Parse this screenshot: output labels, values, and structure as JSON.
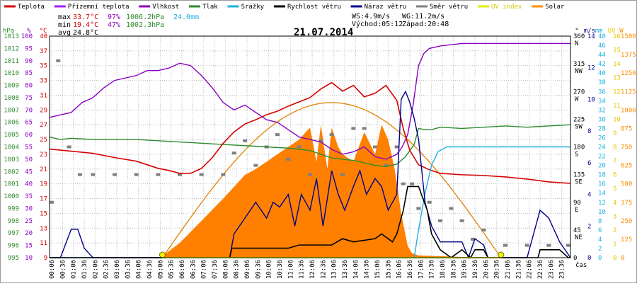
{
  "chart_data": {
    "type": "line",
    "title": "21.07.2014",
    "legend": [
      {
        "name": "Teplota",
        "color": "#d40000"
      },
      {
        "name": "Přízemní teplota",
        "color": "#a020f0"
      },
      {
        "name": "Vlhkost",
        "color": "#8a00c0"
      },
      {
        "name": "Tlak",
        "color": "#2e8b2e"
      },
      {
        "name": "Srážky",
        "color": "#1fb2e0"
      },
      {
        "name": "Rychlost větru",
        "color": "#000000"
      },
      {
        "name": "Náraz větru",
        "color": "#00008b"
      },
      {
        "name": "Směr větru",
        "color": "#7f7f7f"
      },
      {
        "name": "UV index",
        "color": "#e8e800"
      },
      {
        "name": "Solar",
        "color": "#ff8c00"
      }
    ],
    "stats": {
      "max_label": "max",
      "max_temp": "33.7°C",
      "max_hum": "97%",
      "max_press": "1006.2hPa",
      "max_rain": "24.0mm",
      "min_label": "min",
      "min_temp": "19.4°C",
      "min_hum": "47%",
      "min_press": "1002.3hPa",
      "avg_label": "avg",
      "avg_temp": "24.8°C"
    },
    "wind_info": {
      "ws": "WS:4.9m/s",
      "wg": "WG:11.2m/s",
      "sunrise": "Východ:05:12",
      "sunset": "Západ:20:48"
    },
    "x_axis_label": "čas",
    "x_ticks": [
      "00:06",
      "00:36",
      "01:06",
      "01:36",
      "02:06",
      "02:36",
      "03:06",
      "03:36",
      "04:06",
      "04:36",
      "05:06",
      "05:36",
      "06:06",
      "06:36",
      "07:06",
      "07:36",
      "08:06",
      "08:36",
      "09:06",
      "09:36",
      "10:06",
      "10:36",
      "11:06",
      "11:36",
      "12:06",
      "12:36",
      "13:06",
      "13:36",
      "14:06",
      "14:36",
      "15:06",
      "15:36",
      "16:06",
      "16:36",
      "17:06",
      "17:36",
      "18:06",
      "18:36",
      "19:06",
      "19:36",
      "20:06",
      "20:36",
      "21:06",
      "21:36",
      "22:06",
      "22:36",
      "23:06",
      "23:36"
    ],
    "axes": {
      "hpa": {
        "unit": "hPa",
        "ticks": [
          "1013",
          "1012",
          "1011",
          "1010",
          "1009",
          "1008",
          "1007",
          "1006",
          "1005",
          "1004",
          "1003",
          "1002",
          "1001",
          "1000",
          "999",
          "998",
          "997",
          "996",
          "995"
        ],
        "range": [
          995,
          1013
        ]
      },
      "pct": {
        "unit": "%",
        "ticks": [
          "100",
          "95",
          "90",
          "85",
          "80",
          "75",
          "70",
          "65",
          "60",
          "55",
          "50",
          "45",
          "40",
          "35",
          "30",
          "25",
          "20",
          "15",
          "10"
        ],
        "range": [
          10,
          100
        ]
      },
      "temp": {
        "unit": "°C",
        "ticks": [
          "40",
          "37",
          "35",
          "33",
          "31",
          "29",
          "27",
          "25",
          "23",
          "21",
          "19",
          "17",
          "15",
          "13",
          "11",
          "9"
        ],
        "range": [
          9,
          40
        ]
      },
      "wind_dir": {
        "unit": "°",
        "ticks": [
          "360 N",
          "315 NW",
          "270 W",
          "225 SW",
          "180 S",
          "135 SE",
          "90 E",
          "45 NE",
          "0"
        ],
        "range": [
          0,
          360
        ]
      },
      "wind_speed": {
        "unit": "m/s",
        "ticks": [
          "14",
          "12",
          "10",
          "8",
          "6",
          "4",
          "2",
          "0"
        ],
        "range": [
          0,
          14
        ]
      },
      "rain": {
        "unit": "mm",
        "ticks": [
          "48",
          "46",
          "44",
          "42",
          "40",
          "38",
          "36",
          "34",
          "32",
          "30",
          "28",
          "26",
          "24",
          "22",
          "20",
          "18",
          "16",
          "14",
          "12",
          "10",
          "8",
          "6",
          "4",
          "2",
          "0"
        ],
        "range": [
          0,
          48
        ]
      },
      "uv": {
        "unit": "UV",
        "ticks": [
          "16",
          "15",
          "14",
          "13",
          "12",
          "11",
          "10",
          "9",
          "8",
          "7",
          "6",
          "5",
          "4",
          "3",
          "2",
          "1",
          "0"
        ],
        "range": [
          0,
          16
        ]
      },
      "solar": {
        "unit": "W",
        "ticks": [
          "1500",
          "1375",
          "1250",
          "1125",
          "1000",
          "875",
          "750",
          "625",
          "500",
          "375",
          "250",
          "125",
          "0"
        ],
        "range": [
          0,
          1500
        ]
      }
    },
    "series": {
      "temperature": {
        "hours": [
          0,
          1,
          2,
          3,
          4,
          5,
          5.5,
          6,
          6.5,
          7,
          7.5,
          8,
          8.5,
          9,
          9.5,
          10,
          10.5,
          11,
          11.5,
          12,
          12.5,
          13,
          13.5,
          14,
          14.5,
          15,
          15.5,
          16,
          16.3,
          16.6,
          17,
          17.5,
          18,
          19,
          20,
          21,
          22,
          23,
          24
        ],
        "values": [
          24.2,
          23.9,
          23.6,
          23,
          22.5,
          21.5,
          21.2,
          20.8,
          20.8,
          21.5,
          23,
          25,
          26.6,
          27.7,
          28.3,
          29,
          29.5,
          30.2,
          30.8,
          31.4,
          32.6,
          33.5,
          32.3,
          33.1,
          31.5,
          32,
          33.1,
          31,
          27,
          24,
          22,
          21.3,
          20.8,
          20.6,
          20.5,
          20.3,
          20,
          19.6,
          19.4
        ]
      },
      "humidity": {
        "hours": [
          0,
          0.5,
          1,
          1.5,
          2,
          2.5,
          3,
          3.5,
          4,
          4.5,
          5,
          5.5,
          6,
          6.5,
          7,
          7.5,
          8,
          8.5,
          9,
          9.5,
          10,
          10.5,
          11,
          11.5,
          12,
          12.5,
          13,
          13.5,
          14,
          14.5,
          15,
          15.5,
          16,
          16.25,
          16.5,
          16.75,
          17,
          17.25,
          17.5,
          18,
          19,
          20,
          21,
          22,
          23,
          24
        ],
        "values": [
          67,
          68,
          69,
          73,
          75,
          79,
          82,
          83,
          84,
          86,
          86,
          87,
          89,
          88,
          84,
          79,
          73,
          70,
          72,
          69,
          66,
          65,
          62,
          59,
          58,
          57,
          54,
          52,
          53,
          55,
          51,
          50,
          52,
          55,
          60,
          72,
          88,
          93,
          95,
          96,
          97,
          97,
          97,
          97,
          97,
          97
        ]
      },
      "pressure": {
        "hours": [
          0,
          0.5,
          1,
          2,
          3,
          4,
          5,
          6,
          7,
          8,
          9,
          10,
          11,
          12,
          12.5,
          13,
          14,
          15,
          15.5,
          16,
          16.4,
          16.8,
          17,
          17.3,
          17.6,
          18,
          19,
          20,
          21,
          22,
          23,
          24
        ],
        "values": [
          1004.8,
          1004.6,
          1004.7,
          1004.6,
          1004.6,
          1004.6,
          1004.5,
          1004.4,
          1004.3,
          1004.2,
          1004.1,
          1004.0,
          1003.9,
          1003.7,
          1003.4,
          1003.1,
          1002.9,
          1002.5,
          1002.4,
          1002.6,
          1003.2,
          1004.2,
          1005.5,
          1005.4,
          1005.4,
          1005.6,
          1005.5,
          1005.6,
          1005.7,
          1005.6,
          1005.7,
          1005.8
        ]
      },
      "rain": {
        "hours": [
          0,
          16.8,
          17.0,
          17.3,
          17.6,
          17.9,
          18.3,
          18.8,
          24
        ],
        "values": [
          0,
          0,
          6,
          14,
          20,
          23,
          24,
          24,
          24
        ]
      },
      "wind_speed": {
        "hours": [
          0,
          8.3,
          8.4,
          9,
          10,
          11,
          11.5,
          12,
          13,
          13.5,
          14,
          15,
          15.3,
          15.8,
          16,
          16.3,
          16.5,
          16.7,
          17,
          17.4,
          17.6,
          18,
          18.5,
          19,
          19.4,
          19.6,
          20,
          20.2,
          21,
          22,
          22.5,
          22.6,
          23,
          23.5,
          23.9,
          24
        ],
        "values": [
          0,
          0,
          0.6,
          0.6,
          0.6,
          0.6,
          0.8,
          0.8,
          0.8,
          1.2,
          1.0,
          1.2,
          1.5,
          1.0,
          1.5,
          3,
          4.5,
          4.5,
          4.5,
          3,
          1.5,
          0.5,
          0,
          0.5,
          0,
          0.5,
          0.5,
          0,
          0,
          0,
          0,
          0.5,
          0.5,
          0.5,
          0,
          0
        ]
      },
      "wind_gust": {
        "hours": [
          0,
          0.5,
          1,
          1.3,
          1.6,
          2,
          7,
          8.3,
          8.5,
          9,
          9.5,
          10,
          10.3,
          10.6,
          11,
          11.3,
          11.6,
          12,
          12.3,
          12.6,
          13,
          13.3,
          13.6,
          14,
          14.3,
          14.6,
          15,
          15.3,
          15.6,
          16,
          16.2,
          16.4,
          16.6,
          16.8,
          17,
          17.3,
          17.6,
          18,
          19,
          19.3,
          19.6,
          20,
          20.2,
          22,
          22.3,
          22.6,
          23,
          23.5,
          24
        ],
        "values": [
          0,
          0,
          1.8,
          1.8,
          0.6,
          0,
          0,
          0,
          1.5,
          2.5,
          3.5,
          2.5,
          3.5,
          3.2,
          4,
          2,
          4,
          3,
          5,
          2,
          5.5,
          4,
          3,
          4.5,
          5.5,
          4,
          5,
          4.5,
          3,
          4,
          10,
          10.5,
          9.8,
          8.8,
          7.5,
          3.5,
          2,
          1,
          1,
          0,
          1.2,
          0.8,
          0,
          0,
          1.5,
          3,
          2.5,
          1,
          0
        ]
      },
      "solar": {
        "hours": [
          5.1,
          6,
          7,
          8,
          8.5,
          9,
          9.5,
          10,
          10.5,
          11,
          11.5,
          11.8,
          12,
          12.3,
          12.5,
          12.8,
          13,
          13.3,
          13.5,
          14,
          14.5,
          15,
          15.3,
          15.6,
          15.9,
          16.2,
          16.5,
          16.7,
          17,
          18,
          19,
          20,
          20.8
        ],
        "values": [
          0,
          100,
          250,
          400,
          480,
          560,
          600,
          650,
          700,
          750,
          800,
          850,
          880,
          650,
          900,
          600,
          880,
          750,
          700,
          650,
          850,
          700,
          900,
          800,
          600,
          300,
          80,
          30,
          15,
          10,
          5,
          0,
          0
        ]
      },
      "solar_theoretical": {
        "sunrise_h": 5.2,
        "sunset_h": 20.8,
        "peak_w": 1050
      },
      "uv": {
        "hours": [
          5.2,
          20.8
        ],
        "values": [
          0,
          0
        ]
      },
      "wind_direction": {
        "hours": [
          0.1,
          0.4,
          0.9,
          1.4,
          2,
          3,
          4,
          5,
          6,
          7,
          8,
          8.5,
          9,
          9.5,
          10,
          10.5,
          11,
          11.5,
          12,
          12.5,
          13,
          13.5,
          14,
          14.5,
          15,
          15.5,
          16,
          16.3,
          16.7,
          17,
          17.5,
          18,
          18.5,
          19,
          19.5,
          20,
          21,
          22,
          23,
          23.9
        ],
        "values": [
          90,
          320,
          180,
          135,
          135,
          135,
          135,
          135,
          135,
          135,
          135,
          170,
          190,
          150,
          180,
          200,
          160,
          180,
          135,
          190,
          200,
          135,
          210,
          210,
          180,
          150,
          180,
          120,
          120,
          80,
          90,
          60,
          80,
          60,
          30,
          45,
          20,
          20,
          20,
          20
        ]
      }
    }
  }
}
